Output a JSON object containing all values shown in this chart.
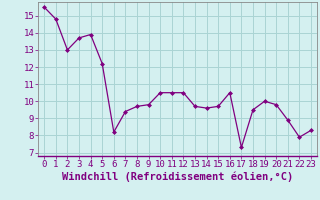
{
  "x": [
    0,
    1,
    2,
    3,
    4,
    5,
    6,
    7,
    8,
    9,
    10,
    11,
    12,
    13,
    14,
    15,
    16,
    17,
    18,
    19,
    20,
    21,
    22,
    23
  ],
  "y": [
    15.5,
    14.8,
    13.0,
    13.7,
    13.9,
    12.2,
    8.2,
    9.4,
    9.7,
    9.8,
    10.5,
    10.5,
    10.5,
    9.7,
    9.6,
    9.7,
    10.5,
    7.3,
    9.5,
    10.0,
    9.8,
    8.9,
    7.9,
    8.3
  ],
  "line_color": "#800080",
  "marker": "D",
  "marker_size": 2,
  "bg_color": "#d4f0f0",
  "grid_color": "#aad4d4",
  "xlabel": "Windchill (Refroidissement éolien,°C)",
  "xlim": [
    -0.5,
    23.5
  ],
  "ylim": [
    6.8,
    15.8
  ],
  "yticks": [
    7,
    8,
    9,
    10,
    11,
    12,
    13,
    14,
    15
  ],
  "xticks": [
    0,
    1,
    2,
    3,
    4,
    5,
    6,
    7,
    8,
    9,
    10,
    11,
    12,
    13,
    14,
    15,
    16,
    17,
    18,
    19,
    20,
    21,
    22,
    23
  ],
  "tick_color": "#800080",
  "tick_fontsize": 6.5,
  "xlabel_fontsize": 7.5,
  "label_color": "#800080"
}
